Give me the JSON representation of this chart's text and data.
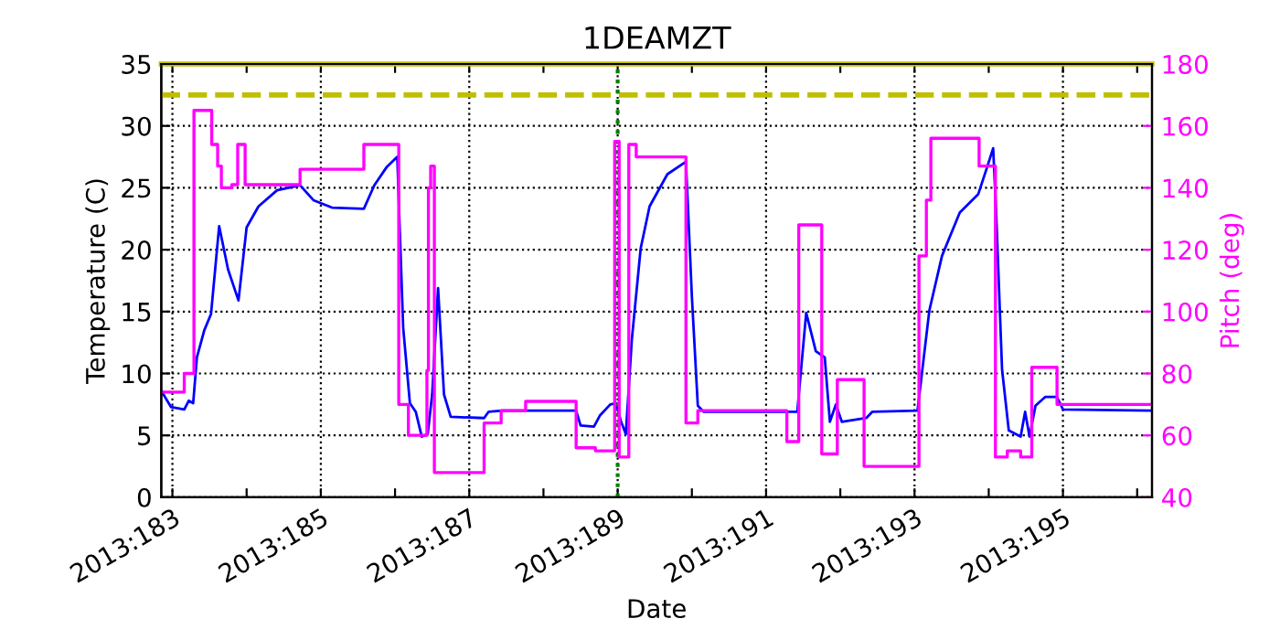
{
  "chart_data": {
    "type": "line",
    "title": "1DEAMZT",
    "xlabel": "Date",
    "ylabel": "Temperature (C)",
    "y2label": "Pitch (deg)",
    "xlim": [
      "2013-07-01T20:24",
      "2013-07-15T04:48"
    ],
    "xticks": [
      {
        "value": "2013-07-02",
        "label": "2013:183"
      },
      {
        "value": "2013-07-03",
        "label": null
      },
      {
        "value": "2013-07-04",
        "label": "2013:185"
      },
      {
        "value": "2013-07-05",
        "label": null
      },
      {
        "value": "2013-07-06",
        "label": "2013:187"
      },
      {
        "value": "2013-07-07",
        "label": null
      },
      {
        "value": "2013-07-08",
        "label": "2013:189"
      },
      {
        "value": "2013-07-09",
        "label": null
      },
      {
        "value": "2013-07-10",
        "label": "2013:191"
      },
      {
        "value": "2013-07-11",
        "label": null
      },
      {
        "value": "2013-07-12",
        "label": "2013:193"
      },
      {
        "value": "2013-07-13",
        "label": null
      },
      {
        "value": "2013-07-14",
        "label": "2013:195"
      },
      {
        "value": "2013-07-15",
        "label": null
      }
    ],
    "ylim": [
      0,
      35
    ],
    "yticks": [
      0,
      5,
      10,
      15,
      20,
      25,
      30,
      35
    ],
    "y2lim": [
      40,
      180
    ],
    "y2ticks": [
      40,
      60,
      80,
      100,
      120,
      140,
      160,
      180
    ],
    "grid": true,
    "series": [
      {
        "color": "#0000ff",
        "x": [
          "2013-07-01T20:24",
          "2013-07-01T23:31",
          "2013-07-02T03:50",
          "2013-07-02T05:17",
          "2013-07-02T06:43",
          "2013-07-02T07:55",
          "2013-07-02T10:19",
          "2013-07-02T12:29",
          "2013-07-02T15:07",
          "2013-07-02T18:00",
          "2013-07-02T21:22",
          "2013-07-03T00:00",
          "2013-07-03T03:50",
          "2013-07-03T09:50",
          "2013-07-03T17:17",
          "2013-07-03T21:36",
          "2013-07-04T03:36",
          "2013-07-04T13:55",
          "2013-07-04T17:17",
          "2013-07-04T21:22",
          "2013-07-05T00:43",
          "2013-07-05T02:38",
          "2013-07-05T04:48",
          "2013-07-05T06:43",
          "2013-07-05T08:38",
          "2013-07-05T10:34",
          "2013-07-05T12:00",
          "2013-07-05T13:55",
          "2013-07-05T15:50",
          "2013-07-05T18:00",
          "2013-07-06T04:48",
          "2013-07-06T06:14",
          "2013-07-06T10:34",
          "2013-07-07T10:34",
          "2013-07-07T12:00",
          "2013-07-07T16:19",
          "2013-07-07T18:14",
          "2013-07-07T21:36",
          "2013-07-07T23:31",
          "2013-07-08T00:58",
          "2013-07-08T02:38",
          "2013-07-08T04:34",
          "2013-07-08T07:26",
          "2013-07-08T10:19",
          "2013-07-08T16:05",
          "2013-07-08T22:05",
          "2013-07-09T00:00",
          "2013-07-09T01:55",
          "2013-07-09T03:50",
          "2013-07-10T10:05",
          "2013-07-10T12:58",
          "2013-07-10T16:05",
          "2013-07-10T18:58",
          "2013-07-10T20:38",
          "2013-07-10T22:34",
          "2013-07-11T00:29",
          "2013-07-11T08:24",
          "2013-07-11T10:19",
          "2013-07-12T00:58",
          "2013-07-12T04:48",
          "2013-07-12T08:53",
          "2013-07-12T14:38",
          "2013-07-12T20:38",
          "2013-07-12T23:31",
          "2013-07-13T01:26",
          "2013-07-13T02:24",
          "2013-07-13T04:19",
          "2013-07-13T06:29",
          "2013-07-13T10:19",
          "2013-07-13T11:46",
          "2013-07-13T13:12",
          "2013-07-13T15:07",
          "2013-07-13T18:14",
          "2013-07-13T22:05",
          "2013-07-14T00:00",
          "2013-07-15T04:48"
        ],
        "values": [
          8.6,
          7.3,
          7.1,
          7.8,
          7.6,
          11.3,
          13.5,
          14.8,
          21.9,
          18.4,
          15.9,
          21.8,
          23.5,
          24.8,
          25.2,
          24.0,
          23.4,
          23.3,
          25.2,
          26.7,
          27.5,
          13.7,
          7.6,
          6.9,
          4.9,
          5.1,
          8.3,
          16.9,
          8.3,
          6.5,
          6.4,
          6.9,
          7.0,
          7.0,
          5.8,
          5.7,
          6.6,
          7.5,
          7.6,
          6.2,
          5.1,
          12.7,
          20.1,
          23.5,
          26.1,
          27.1,
          16.2,
          7.4,
          6.9,
          6.9,
          14.9,
          11.8,
          11.3,
          6.1,
          7.5,
          6.1,
          6.4,
          6.9,
          7.0,
          15.1,
          19.5,
          23.0,
          24.5,
          26.7,
          28.2,
          23.0,
          10.3,
          5.4,
          4.9,
          6.9,
          4.9,
          7.4,
          8.1,
          8.1,
          7.1,
          7.0
        ]
      },
      {
        "type": "step",
        "axis": "y2",
        "color": "#ff00ff",
        "x": [
          "2013-07-01T20:24",
          "2013-07-02T03:50",
          "2013-07-02T06:58",
          "2013-07-02T12:43",
          "2013-07-02T14:38",
          "2013-07-02T15:50",
          "2013-07-02T19:12",
          "2013-07-02T21:07",
          "2013-07-02T23:31",
          "2013-07-03T17:17",
          "2013-07-04T13:55",
          "2013-07-05T01:12",
          "2013-07-05T04:19",
          "2013-07-05T10:19",
          "2013-07-05T10:48",
          "2013-07-05T11:31",
          "2013-07-05T12:43",
          "2013-07-06T04:48",
          "2013-07-06T10:19",
          "2013-07-06T18:14",
          "2013-07-07T10:34",
          "2013-07-07T16:48",
          "2013-07-07T23:02",
          "2013-07-08T00:29",
          "2013-07-08T03:36",
          "2013-07-08T06:00",
          "2013-07-08T22:05",
          "2013-07-09T01:55",
          "2013-07-10T06:43",
          "2013-07-10T10:34",
          "2013-07-10T18:00",
          "2013-07-10T23:02",
          "2013-07-11T07:41",
          "2013-07-12T01:26",
          "2013-07-12T03:50",
          "2013-07-12T05:17",
          "2013-07-12T20:53",
          "2013-07-13T02:10",
          "2013-07-13T06:00",
          "2013-07-13T10:19",
          "2013-07-13T13:55",
          "2013-07-13T22:05",
          "2013-07-15T04:48"
        ],
        "values": [
          74,
          80,
          165,
          154,
          147,
          140,
          141,
          154,
          141,
          146,
          154,
          70,
          60,
          81,
          140,
          147,
          48,
          64,
          68,
          71,
          56,
          55,
          155,
          53,
          154,
          150,
          64,
          68,
          58,
          128,
          54,
          78,
          50,
          118,
          136,
          156,
          147,
          53,
          55,
          53,
          82,
          70,
          70
        ]
      }
    ],
    "ref_lines": [
      {
        "axis": "y",
        "value": 32.5,
        "color": "#bfbf00",
        "line_style": "dashed"
      },
      {
        "axis": "y",
        "value": 35,
        "color": "#bfbf00",
        "line_style": "solid"
      },
      {
        "axis": "x",
        "value": "2013-07-08",
        "color": "#008000",
        "line_style": "dotted"
      }
    ]
  }
}
